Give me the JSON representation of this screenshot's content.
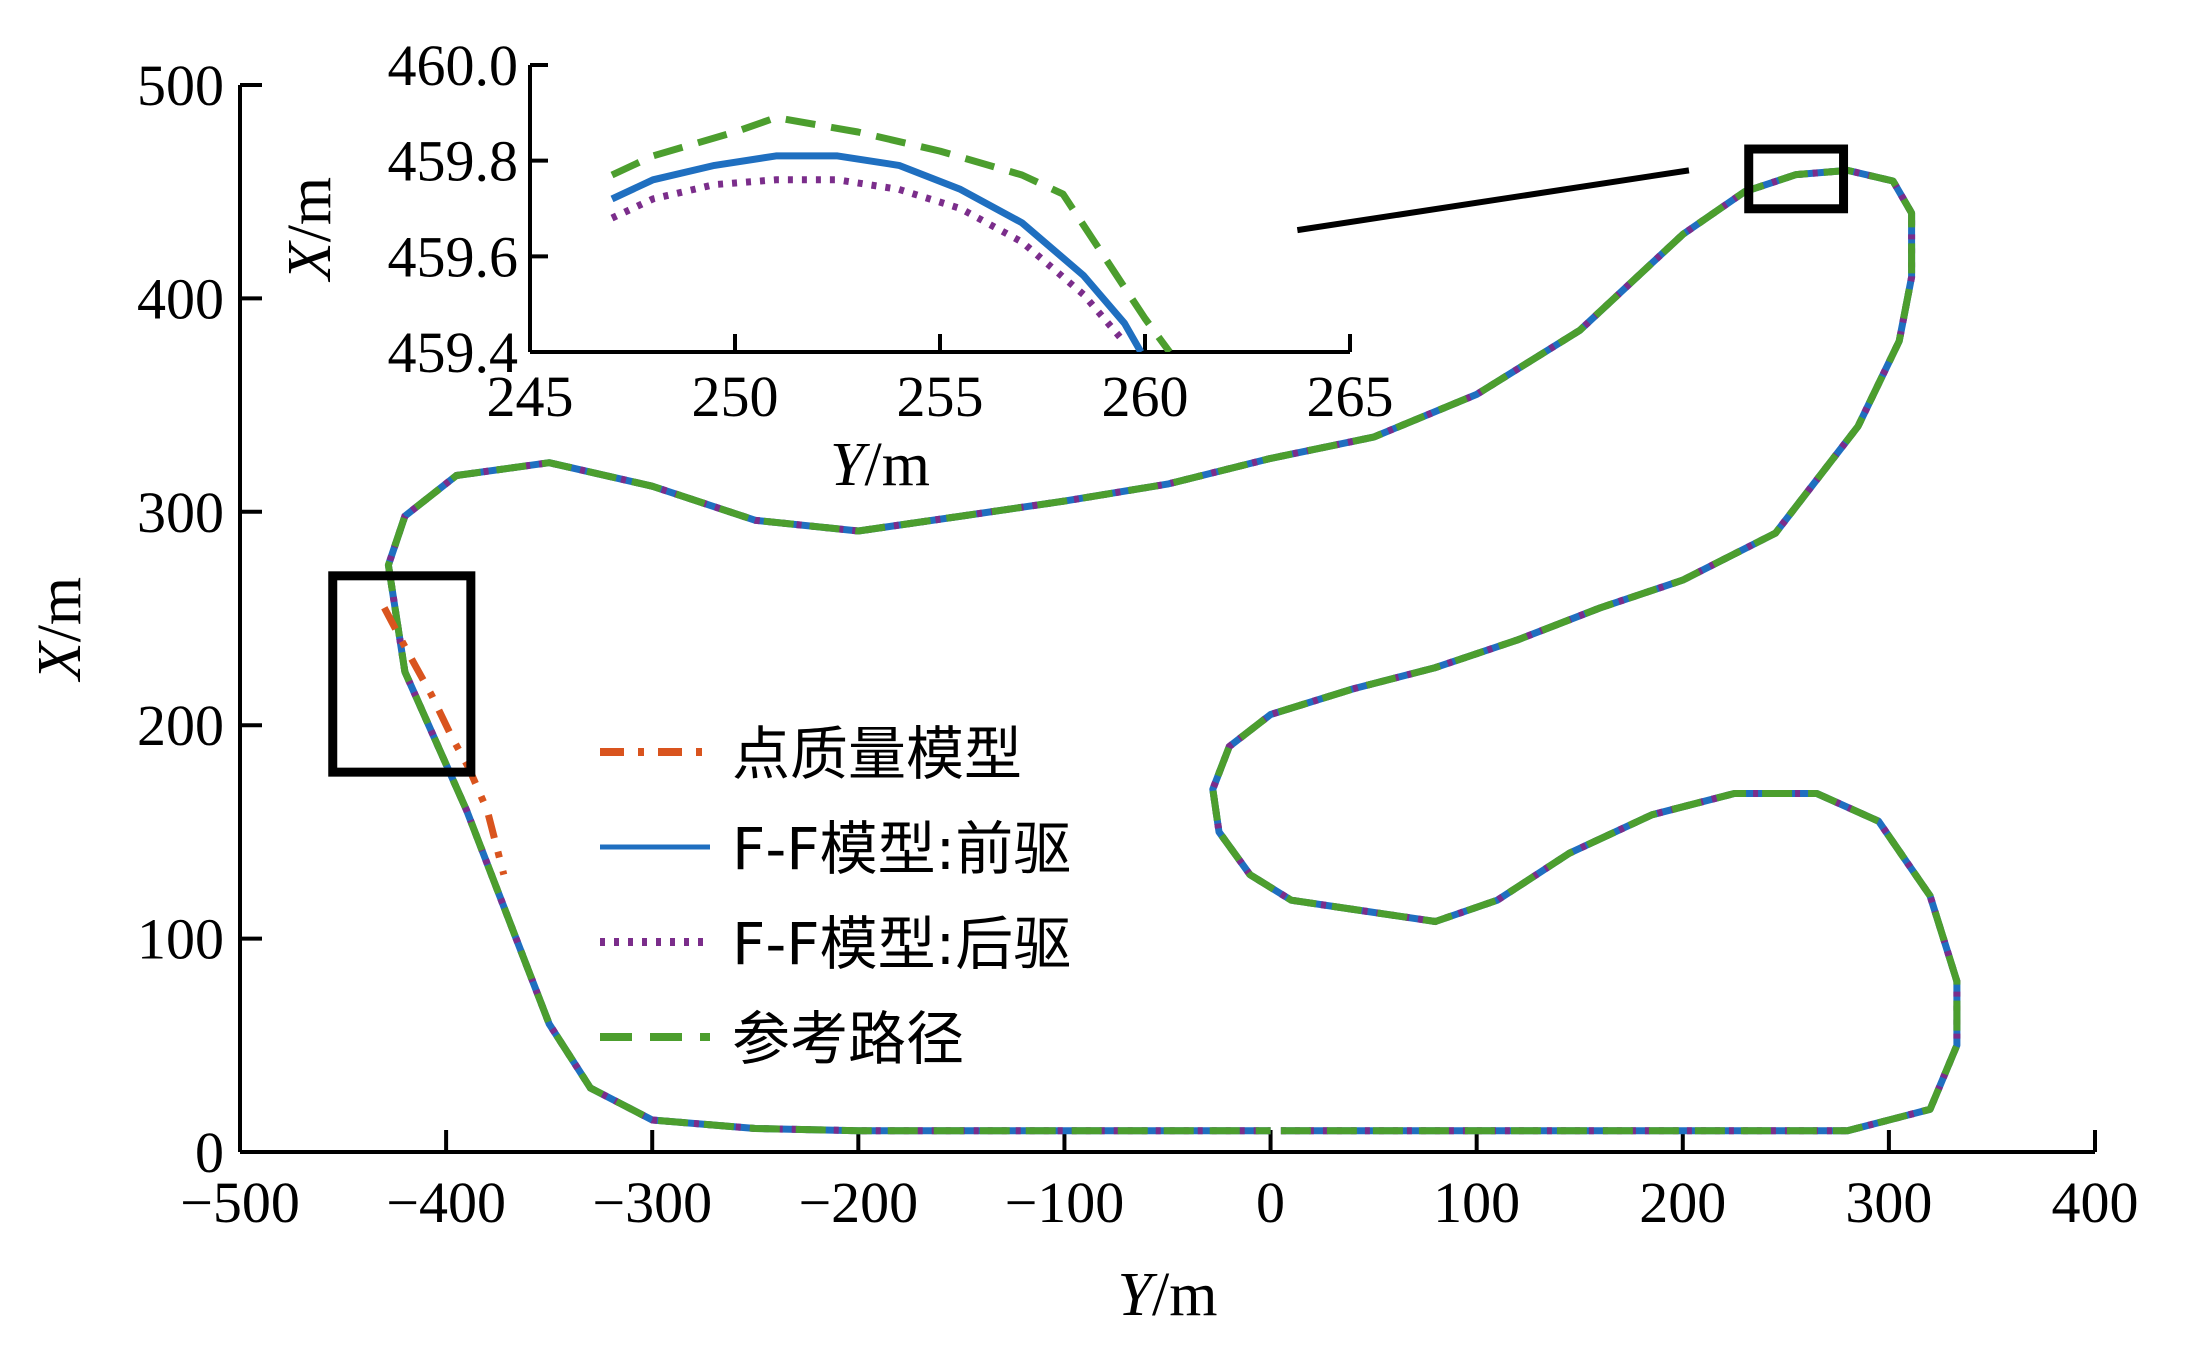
{
  "chart_data": [
    {
      "type": "line",
      "xlabel": "Y/m",
      "ylabel": "X/m",
      "xlim": [
        -500,
        400
      ],
      "ylim": [
        0,
        500
      ],
      "xticks": [
        "−500",
        "−400",
        "−300",
        "−200",
        "−100",
        "0",
        "100",
        "200",
        "300",
        "400"
      ],
      "yticks": [
        "0",
        "100",
        "200",
        "300",
        "400",
        "500"
      ],
      "grid": false,
      "legend_position": "center-left",
      "series": [
        {
          "name": "点质量模型",
          "color": "#D9541E",
          "style": "dash-dot",
          "x": [
            -430,
            -419,
            -407,
            -397,
            -389,
            -380,
            -372
          ],
          "y": [
            255,
            235,
            214,
            194,
            180,
            160,
            130
          ]
        },
        {
          "name": "F-F模型:前驱",
          "color": "#1F6FC0",
          "style": "solid"
        },
        {
          "name": "F-F模型:后驱",
          "color": "#7B2D8B",
          "style": "dotted"
        },
        {
          "name": "参考路径",
          "color": "#4C9E2E",
          "style": "dashed",
          "x": [
            5,
            100,
            200,
            280,
            320,
            333,
            333,
            320,
            295,
            265,
            225,
            185,
            145,
            110,
            80,
            45,
            10,
            -10,
            -25,
            -28,
            -20,
            0,
            40,
            80,
            120,
            160,
            200,
            245,
            285,
            305,
            311,
            311,
            302,
            280,
            255,
            230,
            200,
            150,
            100,
            50,
            0,
            -50,
            -100,
            -150,
            -200,
            -250,
            -300,
            -350,
            -395,
            -420,
            -428,
            -420,
            -390,
            -370,
            -350,
            -330,
            -300,
            -250,
            -200,
            -150,
            -100,
            -50,
            0
          ],
          "y": [
            10,
            10,
            10,
            10,
            20,
            50,
            80,
            120,
            155,
            168,
            168,
            158,
            140,
            118,
            108,
            113,
            118,
            130,
            150,
            170,
            190,
            205,
            217,
            227,
            240,
            255,
            268,
            290,
            340,
            380,
            410,
            440,
            455,
            460,
            458,
            450,
            430,
            385,
            355,
            335,
            325,
            313,
            305,
            298,
            291,
            296,
            312,
            323,
            317,
            298,
            275,
            225,
            160,
            110,
            60,
            30,
            15,
            11,
            10,
            10,
            10,
            10,
            10
          ]
        }
      ]
    },
    {
      "type": "line",
      "xlabel": "Y/m",
      "ylabel": "X/m",
      "xlim": [
        245,
        265
      ],
      "ylim": [
        459.4,
        460.0
      ],
      "xticks": [
        "245",
        "250",
        "255",
        "260",
        "265"
      ],
      "yticks": [
        "459.4",
        "459.6",
        "459.8",
        "460.0"
      ],
      "grid": false,
      "series": [
        {
          "name": "参考路径",
          "color": "#4C9E2E",
          "style": "dashed",
          "x": [
            247,
            248,
            250,
            251,
            253,
            255,
            257,
            258,
            259,
            260,
            260.6
          ],
          "y": [
            459.77,
            459.81,
            459.86,
            459.89,
            459.86,
            459.82,
            459.77,
            459.73,
            459.6,
            459.47,
            459.4
          ]
        },
        {
          "name": "F-F模型:前驱",
          "color": "#1F6FC0",
          "style": "solid",
          "x": [
            247,
            248,
            249.5,
            251,
            252.5,
            254,
            255.5,
            257,
            258.5,
            259.5,
            259.9
          ],
          "y": [
            459.72,
            459.76,
            459.79,
            459.81,
            459.81,
            459.79,
            459.74,
            459.67,
            459.56,
            459.46,
            459.4
          ]
        },
        {
          "name": "F-F模型:后驱",
          "color": "#7B2D8B",
          "style": "dotted",
          "x": [
            247,
            248,
            249.5,
            251,
            252.5,
            254,
            255.5,
            257,
            258.5,
            259.5
          ],
          "y": [
            459.68,
            459.72,
            459.75,
            459.76,
            459.76,
            459.74,
            459.7,
            459.63,
            459.52,
            459.42
          ]
        }
      ]
    }
  ],
  "legend": {
    "items": [
      {
        "label": "点质量模型",
        "color": "#D9541E",
        "style": "dash-dot"
      },
      {
        "label": "F-F模型:前驱",
        "color": "#1F6FC0",
        "style": "solid"
      },
      {
        "label": "F-F模型:后驱",
        "color": "#7B2D8B",
        "style": "dotted"
      },
      {
        "label": "参考路径",
        "color": "#4C9E2E",
        "style": "dashed"
      }
    ]
  }
}
